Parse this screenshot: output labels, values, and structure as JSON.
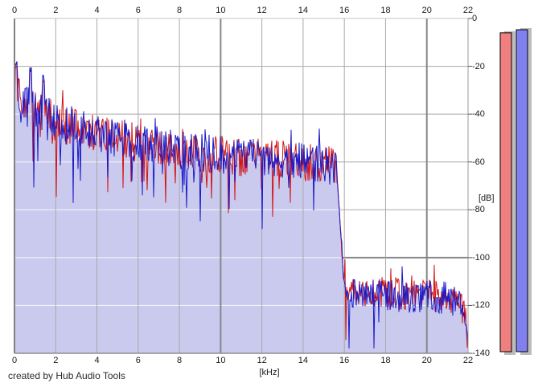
{
  "window": {
    "credit": "created by Hub Audio Tools"
  },
  "chart_data": {
    "type": "area",
    "title": "",
    "xlabel": "[kHz]",
    "ylabel": "[dB]",
    "xlim": [
      0,
      22
    ],
    "ylim": [
      -140,
      0
    ],
    "x_ticks": [
      0,
      2,
      4,
      6,
      8,
      10,
      12,
      14,
      16,
      18,
      20,
      22
    ],
    "y_ticks": [
      0,
      -20,
      -40,
      -60,
      -80,
      -100,
      -120,
      -140
    ],
    "x_major_gridlines_kHz": [
      10,
      20
    ],
    "y_major_gridlines_dB": [
      -100
    ],
    "grid": true,
    "legend_position": "none",
    "description": "Stereo FFT spectrum: broadband content sloping from about -20 dB peaks near 0 kHz down to about -60 dB at 15.5 kHz, sharp lowpass cliff at ~15.8 kHz, noise floor around -116 dB from 16 to 22 kHz",
    "series": [
      {
        "name": "channel-red",
        "color": "#d21414",
        "style": "line",
        "seed": 1234,
        "envelope_kHz": [
          0,
          0.05,
          0.15,
          0.3,
          0.6,
          1.0,
          1.5,
          2.0,
          3.0,
          4.0,
          5.0,
          6.0,
          7.0,
          8.0,
          9.0,
          10.0,
          11.0,
          12.0,
          13.0,
          14.0,
          15.0,
          15.6,
          15.75,
          16.0,
          16.2,
          17.0,
          18.0,
          19.0,
          20.0,
          21.0,
          21.6,
          21.9,
          22.0
        ],
        "envelope_dB": [
          -34,
          -25,
          -33,
          -36,
          -38,
          -40,
          -41,
          -44,
          -46,
          -48,
          -50,
          -52,
          -53,
          -55,
          -56,
          -57,
          -58,
          -58,
          -59,
          -60,
          -61,
          -62,
          -80,
          -112,
          -116,
          -116,
          -115,
          -116,
          -116,
          -117,
          -118,
          -127,
          -134
        ],
        "peaks_kHz_dB": [
          [
            0.08,
            -20
          ],
          [
            0.78,
            -22
          ],
          [
            1.4,
            -26
          ]
        ]
      },
      {
        "name": "channel-blue",
        "color": "#1a1ac8",
        "style": "line+fill",
        "fill": "#cacaee",
        "seed": 987,
        "envelope_kHz": [
          0,
          0.05,
          0.15,
          0.3,
          0.6,
          1.0,
          1.5,
          2.0,
          3.0,
          4.0,
          5.0,
          6.0,
          7.0,
          8.0,
          9.0,
          10.0,
          11.0,
          12.0,
          13.0,
          14.0,
          15.0,
          15.6,
          15.75,
          16.0,
          16.2,
          17.0,
          18.0,
          19.0,
          20.0,
          21.0,
          21.6,
          21.9,
          22.0
        ],
        "envelope_dB": [
          -34,
          -25,
          -33,
          -36,
          -38,
          -40,
          -41,
          -44,
          -46,
          -48,
          -50,
          -52,
          -53,
          -55,
          -56,
          -57,
          -58,
          -58,
          -59,
          -60,
          -61,
          -62,
          -80,
          -112,
          -116,
          -116,
          -115,
          -116,
          -116,
          -117,
          -118,
          -127,
          -134
        ],
        "peaks_kHz_dB": [
          [
            0.08,
            -19
          ],
          [
            0.78,
            -21
          ],
          [
            1.4,
            -25
          ]
        ]
      }
    ],
    "noise_spread_dB": 8,
    "level_meters": [
      {
        "name": "meter-red",
        "color": "#f08080",
        "peak_dB": -6.0
      },
      {
        "name": "meter-blue",
        "color": "#8080f0",
        "peak_dB": -4.7
      }
    ]
  },
  "colors": {
    "background": "#ffffff",
    "grid_minor": "#a8a8a8",
    "grid_major": "#878787",
    "grid_on_fill": "#ffffff",
    "border_left": "#808080",
    "border_top": "#c6c6c6",
    "border_right": "#9a9a9a",
    "border_bottom": "#8e8e8e",
    "meter_shadow": "#bcbcbc",
    "meter_outline": "#000000",
    "text": "#1a1a1a"
  }
}
